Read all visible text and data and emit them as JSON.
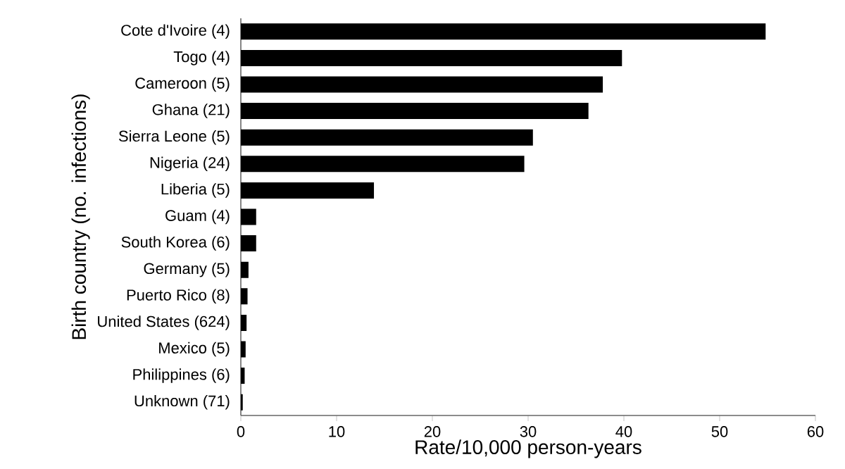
{
  "chart_data": {
    "type": "bar",
    "orientation": "horizontal",
    "xlabel": "Rate/10,000 person-years",
    "ylabel": "Birth country (no. infections)",
    "categories": [
      "Cote d'Ivoire (4)",
      "Togo (4)",
      "Cameroon (5)",
      "Ghana (21)",
      "Sierra Leone (5)",
      "Nigeria (24)",
      "Liberia (5)",
      "Guam (4)",
      "South Korea (6)",
      "Germany (5)",
      "Puerto Rico (8)",
      "United States (624)",
      "Mexico (5)",
      "Philippines (6)",
      "Unknown (71)"
    ],
    "values": [
      54.8,
      39.8,
      37.8,
      36.3,
      30.5,
      29.6,
      13.9,
      1.6,
      1.6,
      0.8,
      0.7,
      0.6,
      0.5,
      0.4,
      0.2
    ],
    "color": "#000000",
    "xlim": [
      0,
      60
    ],
    "xticks": [
      0,
      10,
      20,
      30,
      40,
      50,
      60
    ]
  }
}
